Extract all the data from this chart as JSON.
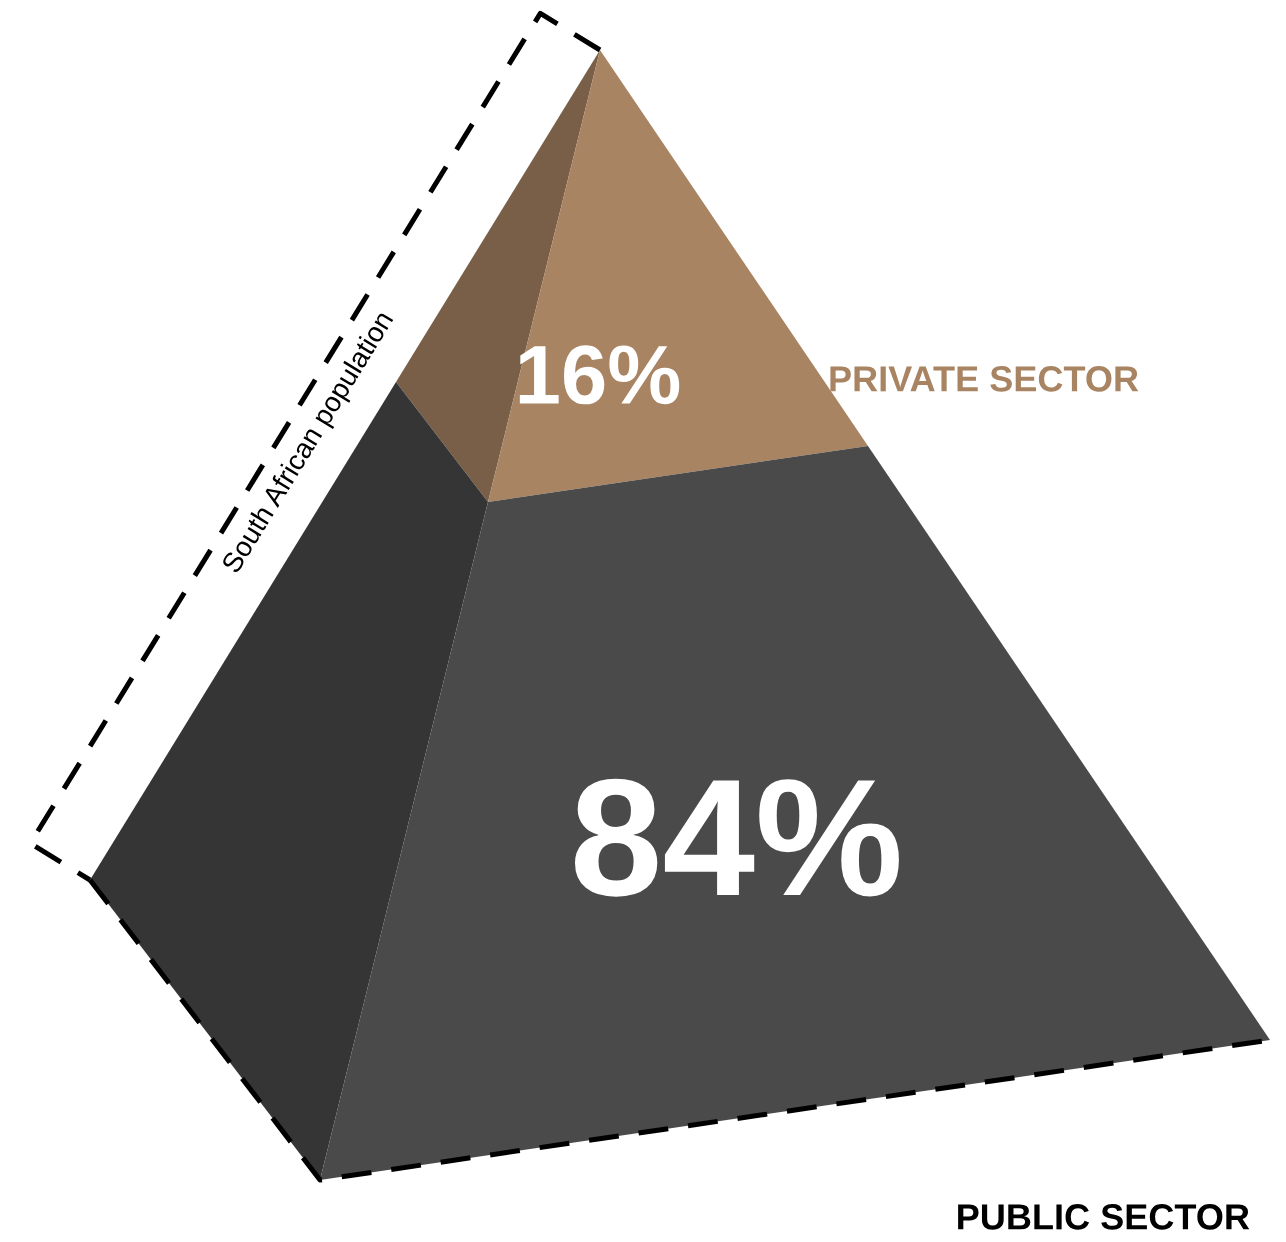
{
  "chart_data": {
    "type": "other",
    "categories": [
      "PRIVATE SECTOR",
      "PUBLIC SECTOR"
    ],
    "values": [
      16,
      84
    ],
    "value_labels": [
      "16%",
      "84%"
    ],
    "colors": [
      "#a88462",
      "#4a4a4a"
    ],
    "annotations": [
      "South African population"
    ]
  }
}
